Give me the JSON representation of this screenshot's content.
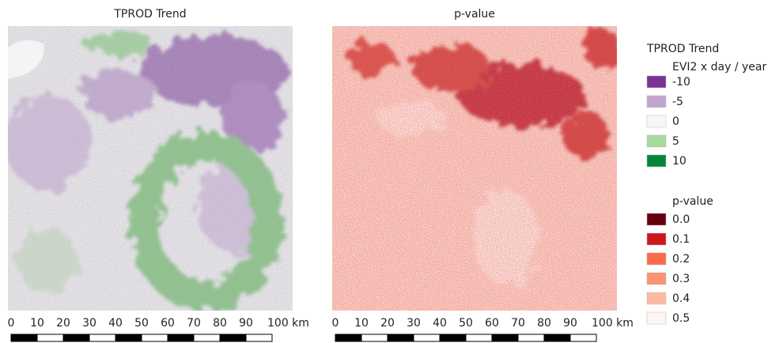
{
  "maps": [
    {
      "title": "TPROD Trend",
      "scale": {
        "labels": [
          "0",
          "10",
          "20",
          "30",
          "40",
          "50",
          "60",
          "70",
          "80",
          "90",
          "100 km"
        ]
      }
    },
    {
      "title": "p-value",
      "scale": {
        "labels": [
          "0",
          "10",
          "20",
          "30",
          "40",
          "50",
          "60",
          "70",
          "80",
          "90",
          "100 km"
        ]
      }
    }
  ],
  "legend": {
    "groups": [
      {
        "title": "TPROD Trend",
        "subtitle": "EVI2 x day / year",
        "items": [
          {
            "label": "-10",
            "color": "#7b3294"
          },
          {
            "label": "-5",
            "color": "#c2a5cf"
          },
          {
            "label": "0",
            "color": "#f7f7f7"
          },
          {
            "label": "5",
            "color": "#a6dba0"
          },
          {
            "label": "10",
            "color": "#008837"
          }
        ]
      },
      {
        "title": "p-value",
        "items": [
          {
            "label": "0.0",
            "color": "#67000d"
          },
          {
            "label": "0.1",
            "color": "#cb181d"
          },
          {
            "label": "0.2",
            "color": "#fb6a4a"
          },
          {
            "label": "0.3",
            "color": "#fc9272"
          },
          {
            "label": "0.4",
            "color": "#fcbba1"
          },
          {
            "label": "0.5",
            "color": "#fff5f0"
          }
        ]
      }
    ]
  }
}
